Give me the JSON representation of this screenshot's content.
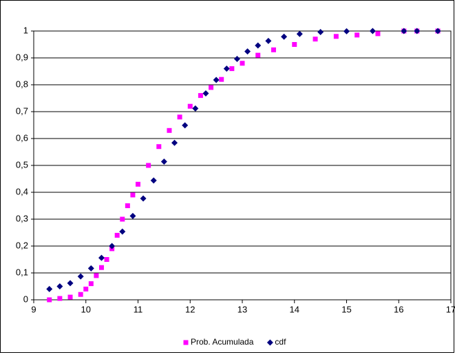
{
  "chart_data": {
    "type": "scatter",
    "xlim": [
      9,
      17
    ],
    "xticks": [
      9,
      10,
      11,
      12,
      13,
      14,
      15,
      16,
      17
    ],
    "ylim": [
      0,
      1
    ],
    "yticks": [
      0,
      {
        "value": 0.1,
        "label": "0,1"
      },
      {
        "value": 0.2,
        "label": "0,2"
      },
      {
        "value": 0.3,
        "label": "0,3"
      },
      {
        "value": 0.4,
        "label": "0,4"
      },
      {
        "value": 0.5,
        "label": "0,5"
      },
      {
        "value": 0.6,
        "label": "0,6"
      },
      {
        "value": 0.7,
        "label": "0,7"
      },
      {
        "value": 0.8,
        "label": "0,8"
      },
      {
        "value": 0.9,
        "label": "0,9"
      },
      1
    ],
    "grid": true,
    "legend": "bottom",
    "series": [
      {
        "name": "Prob. Acumulada",
        "color": "#ff00ff",
        "marker": "square",
        "x": [
          9.3,
          9.5,
          9.7,
          9.9,
          10.0,
          10.1,
          10.2,
          10.3,
          10.4,
          10.5,
          10.6,
          10.7,
          10.8,
          10.9,
          11.0,
          11.2,
          11.4,
          11.6,
          11.8,
          12.0,
          12.2,
          12.4,
          12.6,
          12.8,
          13.0,
          13.3,
          13.6,
          14.0,
          14.4,
          14.8,
          15.2,
          15.6,
          16.1,
          16.35,
          16.75
        ],
        "values": [
          0.0,
          0.005,
          0.01,
          0.02,
          0.04,
          0.06,
          0.09,
          0.12,
          0.15,
          0.19,
          0.24,
          0.3,
          0.35,
          0.39,
          0.43,
          0.5,
          0.57,
          0.63,
          0.68,
          0.72,
          0.76,
          0.79,
          0.82,
          0.86,
          0.88,
          0.91,
          0.93,
          0.95,
          0.97,
          0.98,
          0.985,
          0.99,
          1.0,
          1.0,
          1.0
        ]
      },
      {
        "name": "cdf",
        "color": "#000080",
        "marker": "diamond",
        "x": [
          9.3,
          9.5,
          9.7,
          9.9,
          10.1,
          10.3,
          10.5,
          10.7,
          10.9,
          11.1,
          11.3,
          11.5,
          11.7,
          11.9,
          12.1,
          12.3,
          12.5,
          12.7,
          12.9,
          13.1,
          13.3,
          13.5,
          13.8,
          14.1,
          14.5,
          15.0,
          15.5,
          16.1,
          16.35,
          16.75
        ],
        "values": [
          0.04,
          0.05,
          0.062,
          0.087,
          0.117,
          0.156,
          0.2,
          0.254,
          0.312,
          0.377,
          0.444,
          0.514,
          0.584,
          0.649,
          0.712,
          0.768,
          0.818,
          0.86,
          0.896,
          0.924,
          0.946,
          0.963,
          0.979,
          0.989,
          0.996,
          0.999,
          1.0,
          1.0,
          1.0,
          1.0
        ]
      }
    ]
  }
}
